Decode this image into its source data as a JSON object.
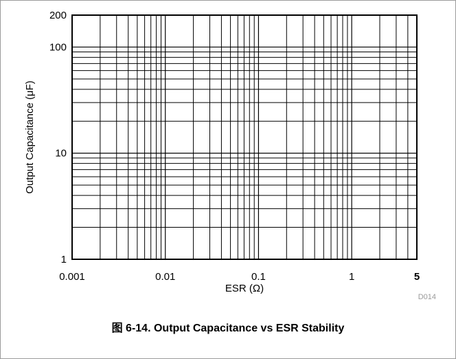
{
  "caption": "图 6-14. Output Capacitance vs ESR Stability",
  "figure_code": "D014",
  "chart_data": {
    "type": "line",
    "title": "",
    "xlabel": "ESR (Ω)",
    "ylabel": "Output Capacitance (μF)",
    "x_scale": "log",
    "y_scale": "log",
    "xlim": [
      0.001,
      5
    ],
    "ylim": [
      1,
      200
    ],
    "grid": true,
    "x_tick_labels": [
      {
        "value": 0.001,
        "label": "0.001",
        "bold": false
      },
      {
        "value": 0.01,
        "label": "0.01",
        "bold": false
      },
      {
        "value": 0.1,
        "label": "0.1",
        "bold": false
      },
      {
        "value": 1,
        "label": "1",
        "bold": false
      },
      {
        "value": 5,
        "label": "5",
        "bold": true
      }
    ],
    "y_tick_labels": [
      {
        "value": 1,
        "label": "1"
      },
      {
        "value": 10,
        "label": "10"
      },
      {
        "value": 100,
        "label": "100"
      },
      {
        "value": 200,
        "label": "200"
      }
    ],
    "series": []
  }
}
